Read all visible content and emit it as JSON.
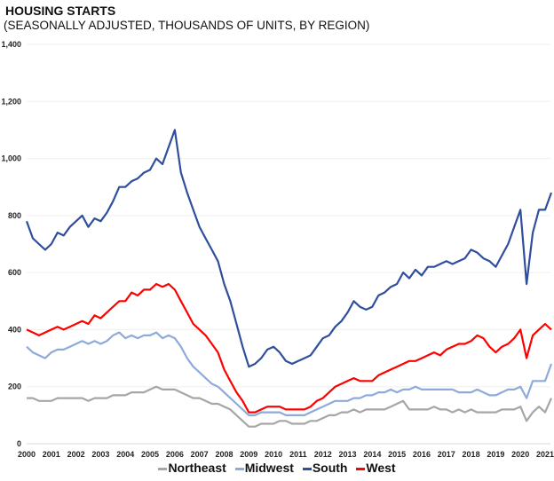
{
  "chart_data": {
    "type": "line",
    "title": "HOUSING STARTS",
    "subtitle": "(SEASONALLY ADJUSTED, THOUSANDS OF UNITS, BY REGION)",
    "xlabel": "",
    "ylabel": "",
    "xlim": [
      2000,
      2021.2
    ],
    "ylim": [
      0,
      1400
    ],
    "y_ticks": [
      "0",
      "200",
      "400",
      "600",
      "800",
      "1,000",
      "1,200",
      "1,400"
    ],
    "x_ticks": [
      "2000",
      "2001",
      "2002",
      "2003",
      "2004",
      "2005",
      "2006",
      "2007",
      "2008",
      "2009",
      "2010",
      "2011",
      "2012",
      "2013",
      "2014",
      "2015",
      "2016",
      "2017",
      "2018",
      "2019",
      "2020",
      "2021"
    ],
    "grid": "horizontal",
    "legend": "bottom",
    "frequency_note_x": "quarterly approximation, x in years",
    "series": [
      {
        "name": "Northeast",
        "color": "#a6a6a6",
        "values": [
          160,
          160,
          150,
          150,
          150,
          160,
          160,
          160,
          160,
          160,
          150,
          160,
          160,
          160,
          170,
          170,
          170,
          180,
          180,
          180,
          190,
          200,
          190,
          190,
          190,
          180,
          170,
          160,
          160,
          150,
          140,
          140,
          130,
          120,
          100,
          80,
          60,
          60,
          70,
          70,
          70,
          80,
          80,
          70,
          70,
          70,
          80,
          80,
          90,
          100,
          100,
          110,
          110,
          120,
          110,
          120,
          120,
          120,
          120,
          130,
          140,
          150,
          120,
          120,
          120,
          120,
          130,
          120,
          120,
          110,
          120,
          110,
          120,
          110,
          110,
          110,
          110,
          120,
          120,
          120,
          130,
          80,
          110,
          130,
          110,
          160
        ]
      },
      {
        "name": "Midwest",
        "color": "#8eaadb",
        "values": [
          340,
          320,
          310,
          300,
          320,
          330,
          330,
          340,
          350,
          360,
          350,
          360,
          350,
          360,
          380,
          390,
          370,
          380,
          370,
          380,
          380,
          390,
          370,
          380,
          370,
          340,
          300,
          270,
          250,
          230,
          210,
          200,
          180,
          160,
          140,
          120,
          100,
          100,
          110,
          110,
          110,
          110,
          100,
          100,
          100,
          100,
          110,
          120,
          130,
          140,
          150,
          150,
          150,
          160,
          160,
          170,
          170,
          180,
          180,
          190,
          180,
          190,
          190,
          200,
          190,
          190,
          190,
          190,
          190,
          190,
          180,
          180,
          180,
          190,
          180,
          170,
          170,
          180,
          190,
          190,
          200,
          160,
          220,
          220,
          220,
          280
        ]
      },
      {
        "name": "South",
        "color": "#2f4f9c",
        "values": [
          780,
          720,
          700,
          680,
          700,
          740,
          730,
          760,
          780,
          800,
          760,
          790,
          780,
          810,
          850,
          900,
          900,
          920,
          930,
          950,
          960,
          1000,
          980,
          1040,
          1100,
          950,
          880,
          820,
          760,
          720,
          680,
          640,
          560,
          500,
          420,
          340,
          270,
          280,
          300,
          330,
          340,
          320,
          290,
          280,
          290,
          300,
          310,
          340,
          370,
          380,
          410,
          430,
          460,
          500,
          480,
          470,
          480,
          520,
          530,
          550,
          560,
          600,
          580,
          610,
          590,
          620,
          620,
          630,
          640,
          630,
          640,
          650,
          680,
          670,
          650,
          640,
          620,
          660,
          700,
          760,
          820,
          560,
          740,
          820,
          820,
          880
        ]
      },
      {
        "name": "West",
        "color": "#ff0000",
        "values": [
          400,
          390,
          380,
          390,
          400,
          410,
          400,
          410,
          420,
          430,
          420,
          450,
          440,
          460,
          480,
          500,
          500,
          530,
          520,
          540,
          540,
          560,
          550,
          560,
          540,
          500,
          460,
          420,
          400,
          380,
          350,
          320,
          260,
          220,
          180,
          150,
          110,
          110,
          120,
          130,
          130,
          130,
          120,
          120,
          120,
          120,
          130,
          150,
          160,
          180,
          200,
          210,
          220,
          230,
          220,
          220,
          220,
          240,
          250,
          260,
          270,
          280,
          290,
          290,
          300,
          310,
          320,
          310,
          330,
          340,
          350,
          350,
          360,
          380,
          370,
          340,
          320,
          340,
          350,
          370,
          400,
          300,
          380,
          400,
          420,
          400
        ]
      }
    ]
  }
}
